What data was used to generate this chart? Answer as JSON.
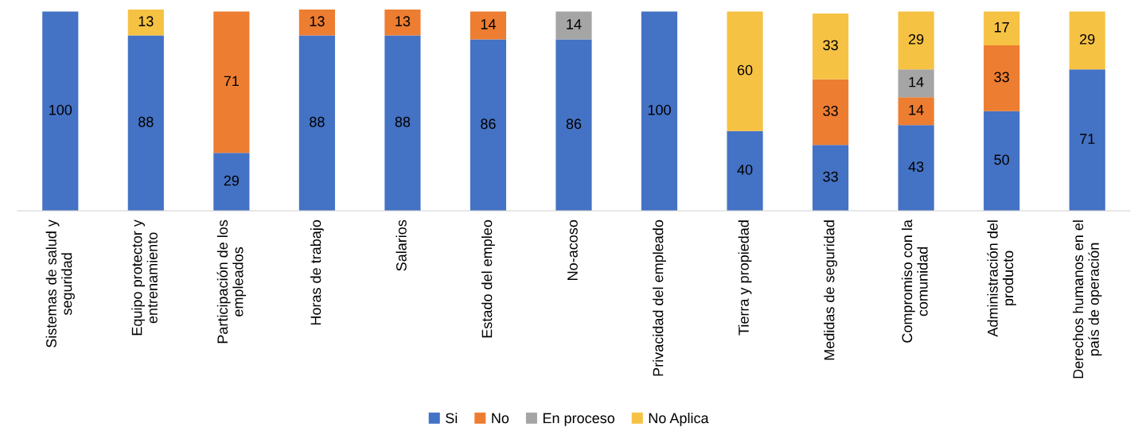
{
  "chart_data": {
    "type": "bar",
    "stacked": true,
    "data_labels": true,
    "legend": "bottom",
    "tick_labels": "x",
    "ylim": [
      0,
      101
    ],
    "categories": [
      "Sistemas de salud y seguridad",
      "Equipo protector y entrenamiento",
      "Participación de los empleados",
      "Horas de trabajo",
      "Salarios",
      "Estado del empleo",
      "No-acoso",
      "Privacidad del empleado",
      "Tierra y propiedad",
      "Medidas de seguridad",
      "Compromiso con la comunidad",
      "Administración del producto",
      "Derechos humanos en el país de operación"
    ],
    "series": [
      {
        "name": "Si",
        "color": "#4472c4",
        "values": [
          100,
          88,
          29,
          88,
          88,
          86,
          86,
          100,
          40,
          33,
          43,
          50,
          71
        ]
      },
      {
        "name": "No",
        "color": "#ed7d31",
        "values": [
          null,
          null,
          71,
          13,
          13,
          14,
          null,
          null,
          null,
          33,
          14,
          33,
          null
        ]
      },
      {
        "name": "En proceso",
        "color": "#a5a5a5",
        "values": [
          null,
          null,
          null,
          null,
          null,
          null,
          14,
          null,
          null,
          null,
          14,
          null,
          null
        ]
      },
      {
        "name": "No Aplica",
        "color": "#f6c243",
        "values": [
          null,
          13,
          null,
          null,
          null,
          null,
          null,
          null,
          60,
          33,
          29,
          17,
          29
        ]
      }
    ]
  }
}
